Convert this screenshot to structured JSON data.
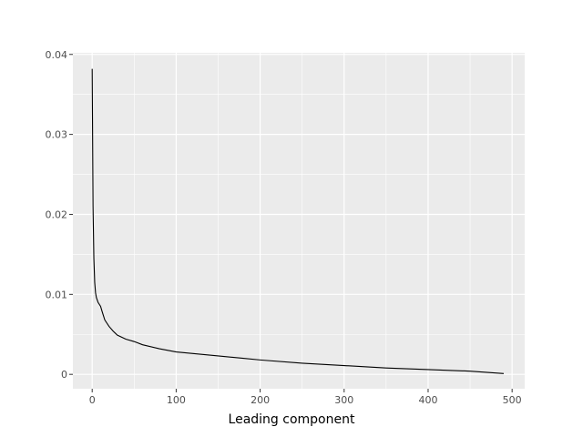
{
  "chart_data": {
    "type": "line",
    "title": "",
    "xlabel": "Leading component",
    "ylabel": "",
    "xlim": [
      -23,
      515
    ],
    "ylim": [
      -0.0018,
      0.0402
    ],
    "x_ticks": [
      0,
      100,
      200,
      300,
      400,
      500
    ],
    "x_tick_labels": [
      "0",
      "100",
      "200",
      "300",
      "400",
      "500"
    ],
    "y_ticks": [
      0,
      0.01,
      0.02,
      0.03,
      0.04
    ],
    "y_tick_labels": [
      "0",
      "0.01",
      "0.02",
      "0.03",
      "0.04"
    ],
    "grid": true,
    "legend": "none",
    "colors": {
      "panel": "#ebebeb",
      "grid": "#ffffff",
      "line": "#000000",
      "tick": "#4d4d4d"
    },
    "series": [
      {
        "x": [
          0,
          1,
          2,
          3,
          4,
          5,
          7,
          10,
          12,
          15,
          20,
          25,
          30,
          40,
          50,
          60,
          80,
          100,
          120,
          150,
          180,
          200,
          250,
          300,
          350,
          400,
          450,
          490
        ],
        "values": [
          0.0382,
          0.021,
          0.0145,
          0.0115,
          0.0102,
          0.0096,
          0.009,
          0.0085,
          0.0078,
          0.0068,
          0.006,
          0.0054,
          0.0049,
          0.0044,
          0.0041,
          0.0037,
          0.0032,
          0.0028,
          0.0026,
          0.0023,
          0.002,
          0.0018,
          0.0014,
          0.0011,
          0.0008,
          0.0006,
          0.0004,
          0.0001
        ]
      }
    ]
  }
}
